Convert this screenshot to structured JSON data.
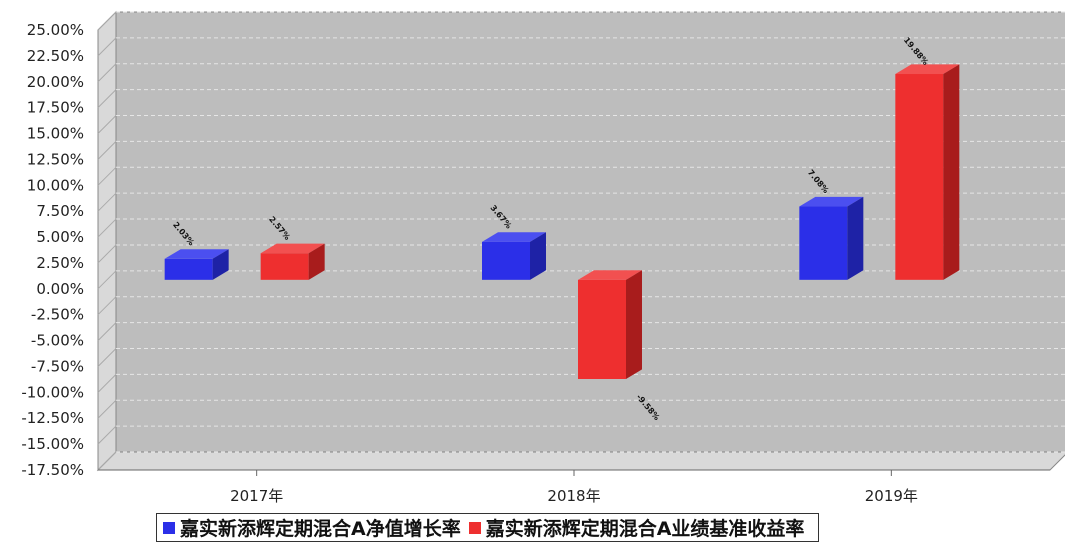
{
  "chart_data": {
    "type": "bar",
    "title": "",
    "categories": [
      "2017年",
      "2018年",
      "2019年"
    ],
    "series": [
      {
        "name": "嘉实新添辉定期混合A净值增长率",
        "color": "#2b2fe8",
        "side": "#1e22a6",
        "top": "#4b4ff0",
        "values": [
          2.03,
          3.67,
          7.08
        ],
        "labels": [
          "2.03%",
          "3.67%",
          "7.08%"
        ]
      },
      {
        "name": "嘉实新添辉定期混合A业绩基准收益率",
        "color": "#ee2f2f",
        "side": "#a81c1c",
        "top": "#f25050",
        "values": [
          2.57,
          -9.58,
          19.88
        ],
        "labels": [
          "2.57%",
          "-9.58%",
          "19.88%"
        ]
      }
    ],
    "yticks": [
      "25.00%",
      "22.50%",
      "20.00%",
      "17.50%",
      "15.00%",
      "12.50%",
      "10.00%",
      "7.50%",
      "5.00%",
      "2.50%",
      "0.00%",
      "-2.50%",
      "-5.00%",
      "-7.50%",
      "-10.00%",
      "-12.50%",
      "-15.00%",
      "-17.50%"
    ],
    "ylim": [
      -17.5,
      25
    ],
    "grid": true,
    "legend_position": "bottom"
  }
}
